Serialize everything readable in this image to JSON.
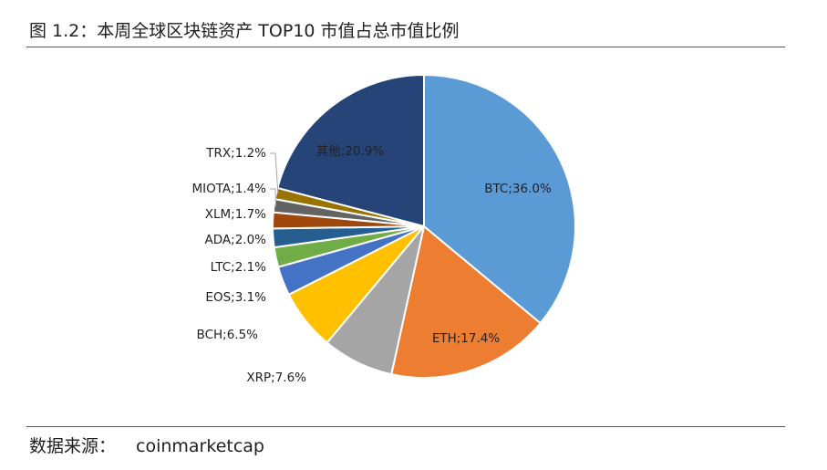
{
  "figure": {
    "title": "图 1.2：本周全球区块链资产 TOP10 市值占总市值比例",
    "source_label": "数据来源：",
    "source_value": "coinmarketcap"
  },
  "chart_data": {
    "type": "pie",
    "title": "图 1.2：本周全球区块链资产 TOP10 市值占总市值比例",
    "unit": "%",
    "start_angle_deg": 0,
    "direction": "clockwise",
    "slices": [
      {
        "name": "BTC",
        "value": 36.0,
        "label": "BTC;36.0%",
        "color": "#5B9BD5"
      },
      {
        "name": "ETH",
        "value": 17.4,
        "label": "ETH;17.4%",
        "color": "#ED7D31"
      },
      {
        "name": "XRP",
        "value": 7.6,
        "label": "XRP;7.6%",
        "color": "#A5A5A5"
      },
      {
        "name": "BCH",
        "value": 6.5,
        "label": "BCH;6.5%",
        "color": "#FFC000"
      },
      {
        "name": "EOS",
        "value": 3.1,
        "label": "EOS;3.1%",
        "color": "#4472C4"
      },
      {
        "name": "LTC",
        "value": 2.1,
        "label": "LTC;2.1%",
        "color": "#70AD47"
      },
      {
        "name": "ADA",
        "value": 2.0,
        "label": "ADA;2.0%",
        "color": "#255E91"
      },
      {
        "name": "XLM",
        "value": 1.7,
        "label": "XLM;1.7%",
        "color": "#9E480E"
      },
      {
        "name": "MIOTA",
        "value": 1.4,
        "label": "MIOTA;1.4%",
        "color": "#636363"
      },
      {
        "name": "TRX",
        "value": 1.2,
        "label": "TRX;1.2%",
        "color": "#997300"
      },
      {
        "name": "其他",
        "value": 20.9,
        "label": "其他;20.9%",
        "color": "#264478"
      }
    ]
  }
}
